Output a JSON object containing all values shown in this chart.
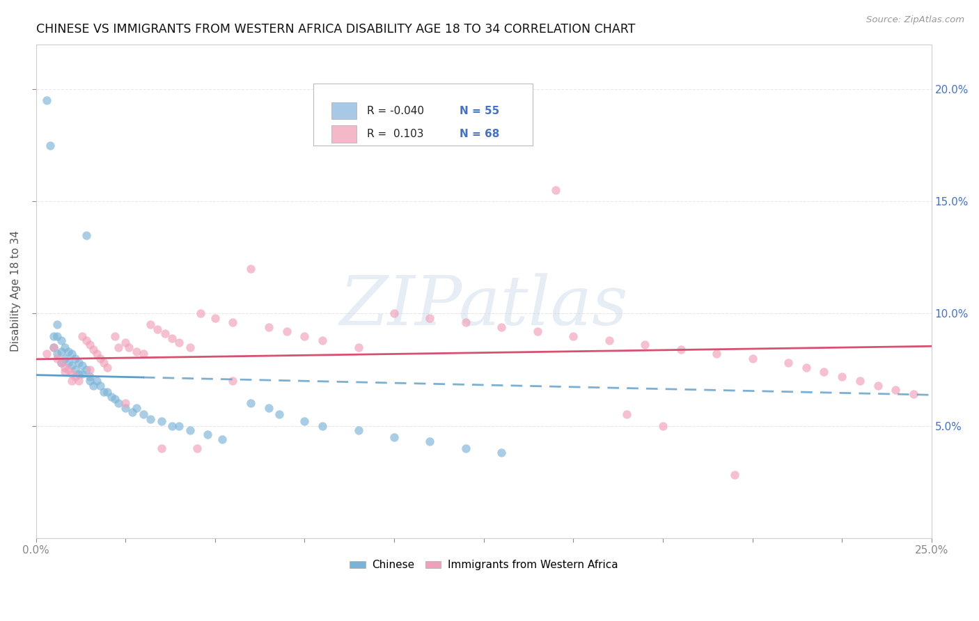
{
  "title": "CHINESE VS IMMIGRANTS FROM WESTERN AFRICA DISABILITY AGE 18 TO 34 CORRELATION CHART",
  "source": "Source: ZipAtlas.com",
  "ylabel": "Disability Age 18 to 34",
  "right_yticks": [
    0.05,
    0.1,
    0.15,
    0.2
  ],
  "right_yticklabels": [
    "5.0%",
    "10.0%",
    "15.0%",
    "20.0%"
  ],
  "xmin": 0.0,
  "xmax": 0.25,
  "ymin": 0.0,
  "ymax": 0.22,
  "watermark_text": "ZIPatlas",
  "legend_entries": [
    {
      "label": "Chinese",
      "color": "#a8c8e8",
      "R": "-0.040",
      "N": "55"
    },
    {
      "label": "Immigrants from Western Africa",
      "color": "#f4b8c8",
      "R": "0.103",
      "N": "68"
    }
  ],
  "chinese_color": "#7ab3d8",
  "wa_color": "#f0a0b8",
  "chinese_trend_color": "#5b9dc8",
  "wa_trend_color": "#d85070",
  "bg_color": "#ffffff",
  "grid_color": "#e8e8e8",
  "grid_style": "--",
  "R_chinese": -0.04,
  "R_wa": 0.103,
  "N_chinese": 55,
  "N_wa": 68,
  "chinese_x": [
    0.003,
    0.004,
    0.005,
    0.005,
    0.006,
    0.006,
    0.006,
    0.007,
    0.007,
    0.007,
    0.008,
    0.008,
    0.009,
    0.009,
    0.01,
    0.01,
    0.011,
    0.011,
    0.012,
    0.012,
    0.013,
    0.013,
    0.014,
    0.014,
    0.015,
    0.015,
    0.016,
    0.017,
    0.018,
    0.019,
    0.02,
    0.021,
    0.022,
    0.023,
    0.025,
    0.027,
    0.028,
    0.03,
    0.032,
    0.035,
    0.038,
    0.04,
    0.043,
    0.048,
    0.052,
    0.06,
    0.065,
    0.068,
    0.075,
    0.08,
    0.09,
    0.1,
    0.11,
    0.12,
    0.13
  ],
  "chinese_y": [
    0.195,
    0.175,
    0.09,
    0.085,
    0.095,
    0.09,
    0.082,
    0.088,
    0.083,
    0.078,
    0.085,
    0.08,
    0.083,
    0.078,
    0.082,
    0.077,
    0.08,
    0.075,
    0.078,
    0.073,
    0.077,
    0.073,
    0.135,
    0.075,
    0.072,
    0.07,
    0.068,
    0.07,
    0.068,
    0.065,
    0.065,
    0.063,
    0.062,
    0.06,
    0.058,
    0.056,
    0.058,
    0.055,
    0.053,
    0.052,
    0.05,
    0.05,
    0.048,
    0.046,
    0.044,
    0.06,
    0.058,
    0.055,
    0.052,
    0.05,
    0.048,
    0.045,
    0.043,
    0.04,
    0.038
  ],
  "wa_x": [
    0.003,
    0.005,
    0.006,
    0.007,
    0.008,
    0.008,
    0.009,
    0.01,
    0.01,
    0.011,
    0.012,
    0.013,
    0.014,
    0.015,
    0.015,
    0.016,
    0.017,
    0.018,
    0.019,
    0.02,
    0.022,
    0.023,
    0.025,
    0.026,
    0.028,
    0.03,
    0.032,
    0.034,
    0.036,
    0.038,
    0.04,
    0.043,
    0.046,
    0.05,
    0.055,
    0.06,
    0.065,
    0.07,
    0.075,
    0.08,
    0.09,
    0.1,
    0.11,
    0.12,
    0.13,
    0.14,
    0.15,
    0.16,
    0.17,
    0.18,
    0.19,
    0.2,
    0.21,
    0.215,
    0.22,
    0.225,
    0.23,
    0.235,
    0.24,
    0.245,
    0.025,
    0.035,
    0.045,
    0.055,
    0.145,
    0.165,
    0.175,
    0.195
  ],
  "wa_y": [
    0.082,
    0.085,
    0.08,
    0.078,
    0.076,
    0.074,
    0.075,
    0.073,
    0.07,
    0.072,
    0.07,
    0.09,
    0.088,
    0.086,
    0.075,
    0.084,
    0.082,
    0.08,
    0.078,
    0.076,
    0.09,
    0.085,
    0.087,
    0.085,
    0.083,
    0.082,
    0.095,
    0.093,
    0.091,
    0.089,
    0.087,
    0.085,
    0.1,
    0.098,
    0.096,
    0.12,
    0.094,
    0.092,
    0.09,
    0.088,
    0.085,
    0.1,
    0.098,
    0.096,
    0.094,
    0.092,
    0.09,
    0.088,
    0.086,
    0.084,
    0.082,
    0.08,
    0.078,
    0.076,
    0.074,
    0.072,
    0.07,
    0.068,
    0.066,
    0.064,
    0.06,
    0.04,
    0.04,
    0.07,
    0.155,
    0.055,
    0.05,
    0.028
  ]
}
